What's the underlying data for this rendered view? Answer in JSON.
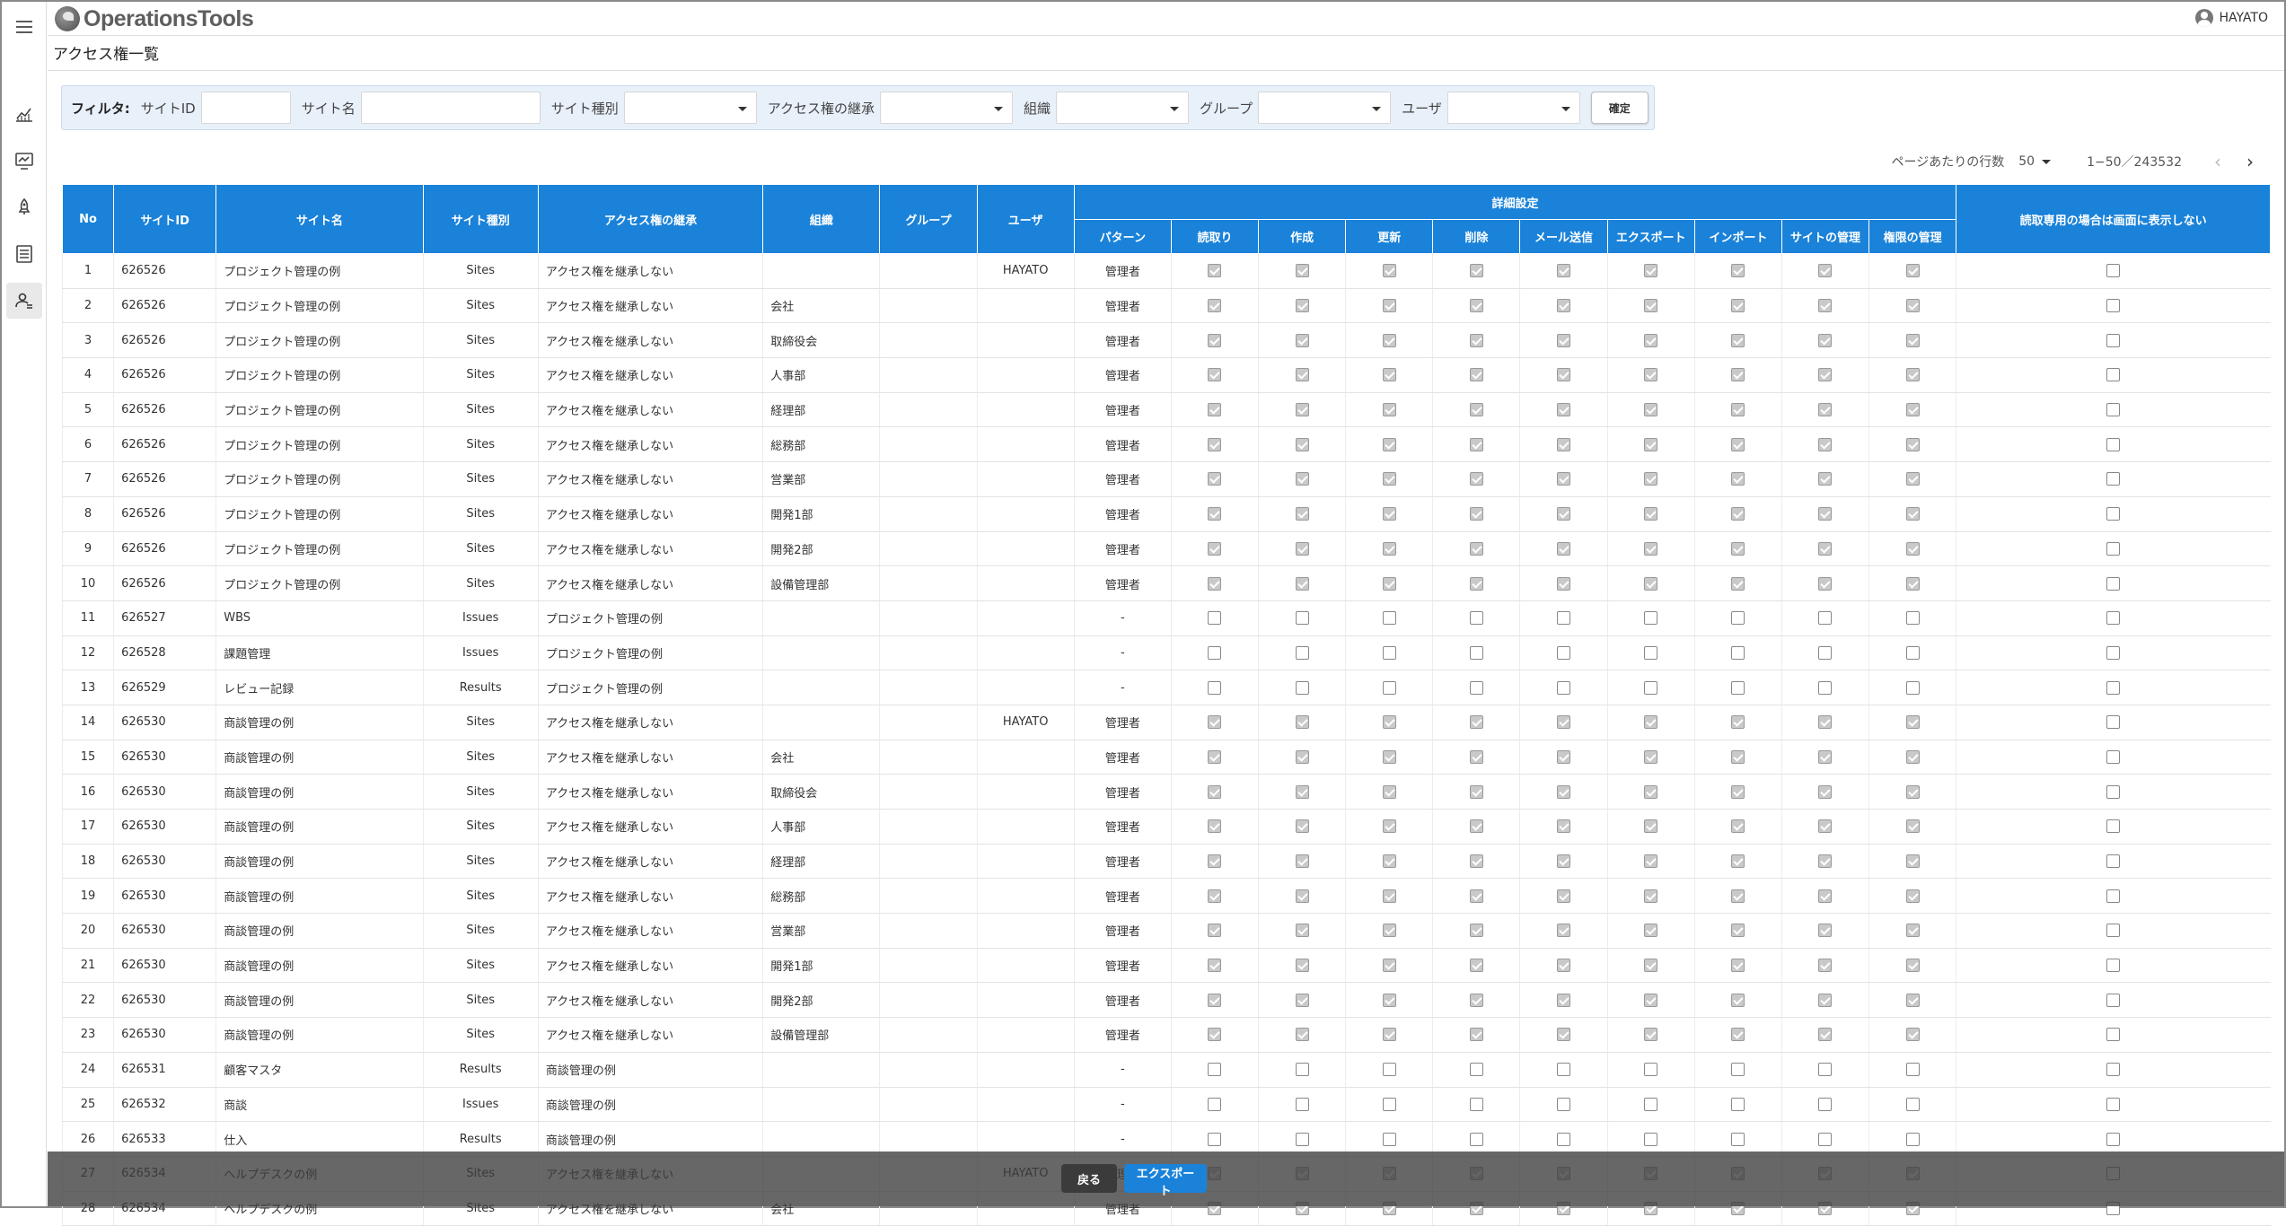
{
  "app": {
    "name": "OperationsTools",
    "user": "HAYATO"
  },
  "page": {
    "title": "アクセス権一覧"
  },
  "sidebar": {
    "items": [
      "chart-line-icon",
      "monitor-chart-icon",
      "rocket-icon",
      "list-document-icon",
      "user-settings-icon"
    ]
  },
  "filter": {
    "label": "フィルタ:",
    "site_id": "サイトID",
    "site_name": "サイト名",
    "site_type": "サイト種別",
    "inherit": "アクセス権の継承",
    "org": "組織",
    "group": "グループ",
    "user": "ユーザ",
    "confirm": "確定"
  },
  "pager": {
    "rows_label": "ページあたりの行数",
    "rows_value": "50",
    "range": "1−50／243532"
  },
  "table": {
    "headers": {
      "no": "No",
      "site_id": "サイトID",
      "site_name": "サイト名",
      "site_type": "サイト種別",
      "inherit": "アクセス権の継承",
      "org": "組織",
      "group": "グループ",
      "user": "ユーザ",
      "detail": "詳細設定",
      "pattern": "パターン",
      "read": "読取り",
      "create": "作成",
      "update": "更新",
      "delete": "削除",
      "mail": "メール送信",
      "export": "エクスポート",
      "import": "インポート",
      "site_manage": "サイトの管理",
      "perm_manage": "権限の管理",
      "readonly_hide": "読取専用の場合は画面に表示しない"
    },
    "rows": [
      {
        "no": "1",
        "site_id": "626526",
        "site_name": "プロジェクト管理の例",
        "site_type": "Sites",
        "inherit": "アクセス権を継承しない",
        "org": "",
        "group": "",
        "user": "HAYATO",
        "pattern": "管理者",
        "checked": true
      },
      {
        "no": "2",
        "site_id": "626526",
        "site_name": "プロジェクト管理の例",
        "site_type": "Sites",
        "inherit": "アクセス権を継承しない",
        "org": "会社",
        "group": "",
        "user": "",
        "pattern": "管理者",
        "checked": true
      },
      {
        "no": "3",
        "site_id": "626526",
        "site_name": "プロジェクト管理の例",
        "site_type": "Sites",
        "inherit": "アクセス権を継承しない",
        "org": "取締役会",
        "group": "",
        "user": "",
        "pattern": "管理者",
        "checked": true
      },
      {
        "no": "4",
        "site_id": "626526",
        "site_name": "プロジェクト管理の例",
        "site_type": "Sites",
        "inherit": "アクセス権を継承しない",
        "org": "人事部",
        "group": "",
        "user": "",
        "pattern": "管理者",
        "checked": true
      },
      {
        "no": "5",
        "site_id": "626526",
        "site_name": "プロジェクト管理の例",
        "site_type": "Sites",
        "inherit": "アクセス権を継承しない",
        "org": "経理部",
        "group": "",
        "user": "",
        "pattern": "管理者",
        "checked": true
      },
      {
        "no": "6",
        "site_id": "626526",
        "site_name": "プロジェクト管理の例",
        "site_type": "Sites",
        "inherit": "アクセス権を継承しない",
        "org": "総務部",
        "group": "",
        "user": "",
        "pattern": "管理者",
        "checked": true
      },
      {
        "no": "7",
        "site_id": "626526",
        "site_name": "プロジェクト管理の例",
        "site_type": "Sites",
        "inherit": "アクセス権を継承しない",
        "org": "営業部",
        "group": "",
        "user": "",
        "pattern": "管理者",
        "checked": true
      },
      {
        "no": "8",
        "site_id": "626526",
        "site_name": "プロジェクト管理の例",
        "site_type": "Sites",
        "inherit": "アクセス権を継承しない",
        "org": "開発1部",
        "group": "",
        "user": "",
        "pattern": "管理者",
        "checked": true
      },
      {
        "no": "9",
        "site_id": "626526",
        "site_name": "プロジェクト管理の例",
        "site_type": "Sites",
        "inherit": "アクセス権を継承しない",
        "org": "開発2部",
        "group": "",
        "user": "",
        "pattern": "管理者",
        "checked": true
      },
      {
        "no": "10",
        "site_id": "626526",
        "site_name": "プロジェクト管理の例",
        "site_type": "Sites",
        "inherit": "アクセス権を継承しない",
        "org": "設備管理部",
        "group": "",
        "user": "",
        "pattern": "管理者",
        "checked": true
      },
      {
        "no": "11",
        "site_id": "626527",
        "site_name": "WBS",
        "site_type": "Issues",
        "inherit": "プロジェクト管理の例",
        "org": "",
        "group": "",
        "user": "",
        "pattern": "-",
        "checked": false
      },
      {
        "no": "12",
        "site_id": "626528",
        "site_name": "課題管理",
        "site_type": "Issues",
        "inherit": "プロジェクト管理の例",
        "org": "",
        "group": "",
        "user": "",
        "pattern": "-",
        "checked": false
      },
      {
        "no": "13",
        "site_id": "626529",
        "site_name": "レビュー記録",
        "site_type": "Results",
        "inherit": "プロジェクト管理の例",
        "org": "",
        "group": "",
        "user": "",
        "pattern": "-",
        "checked": false
      },
      {
        "no": "14",
        "site_id": "626530",
        "site_name": "商談管理の例",
        "site_type": "Sites",
        "inherit": "アクセス権を継承しない",
        "org": "",
        "group": "",
        "user": "HAYATO",
        "pattern": "管理者",
        "checked": true
      },
      {
        "no": "15",
        "site_id": "626530",
        "site_name": "商談管理の例",
        "site_type": "Sites",
        "inherit": "アクセス権を継承しない",
        "org": "会社",
        "group": "",
        "user": "",
        "pattern": "管理者",
        "checked": true
      },
      {
        "no": "16",
        "site_id": "626530",
        "site_name": "商談管理の例",
        "site_type": "Sites",
        "inherit": "アクセス権を継承しない",
        "org": "取締役会",
        "group": "",
        "user": "",
        "pattern": "管理者",
        "checked": true
      },
      {
        "no": "17",
        "site_id": "626530",
        "site_name": "商談管理の例",
        "site_type": "Sites",
        "inherit": "アクセス権を継承しない",
        "org": "人事部",
        "group": "",
        "user": "",
        "pattern": "管理者",
        "checked": true
      },
      {
        "no": "18",
        "site_id": "626530",
        "site_name": "商談管理の例",
        "site_type": "Sites",
        "inherit": "アクセス権を継承しない",
        "org": "経理部",
        "group": "",
        "user": "",
        "pattern": "管理者",
        "checked": true
      },
      {
        "no": "19",
        "site_id": "626530",
        "site_name": "商談管理の例",
        "site_type": "Sites",
        "inherit": "アクセス権を継承しない",
        "org": "総務部",
        "group": "",
        "user": "",
        "pattern": "管理者",
        "checked": true
      },
      {
        "no": "20",
        "site_id": "626530",
        "site_name": "商談管理の例",
        "site_type": "Sites",
        "inherit": "アクセス権を継承しない",
        "org": "営業部",
        "group": "",
        "user": "",
        "pattern": "管理者",
        "checked": true
      },
      {
        "no": "21",
        "site_id": "626530",
        "site_name": "商談管理の例",
        "site_type": "Sites",
        "inherit": "アクセス権を継承しない",
        "org": "開発1部",
        "group": "",
        "user": "",
        "pattern": "管理者",
        "checked": true
      },
      {
        "no": "22",
        "site_id": "626530",
        "site_name": "商談管理の例",
        "site_type": "Sites",
        "inherit": "アクセス権を継承しない",
        "org": "開発2部",
        "group": "",
        "user": "",
        "pattern": "管理者",
        "checked": true
      },
      {
        "no": "23",
        "site_id": "626530",
        "site_name": "商談管理の例",
        "site_type": "Sites",
        "inherit": "アクセス権を継承しない",
        "org": "設備管理部",
        "group": "",
        "user": "",
        "pattern": "管理者",
        "checked": true
      },
      {
        "no": "24",
        "site_id": "626531",
        "site_name": "顧客マスタ",
        "site_type": "Results",
        "inherit": "商談管理の例",
        "org": "",
        "group": "",
        "user": "",
        "pattern": "-",
        "checked": false
      },
      {
        "no": "25",
        "site_id": "626532",
        "site_name": "商談",
        "site_type": "Issues",
        "inherit": "商談管理の例",
        "org": "",
        "group": "",
        "user": "",
        "pattern": "-",
        "checked": false
      },
      {
        "no": "26",
        "site_id": "626533",
        "site_name": "仕入",
        "site_type": "Results",
        "inherit": "商談管理の例",
        "org": "",
        "group": "",
        "user": "",
        "pattern": "-",
        "checked": false
      },
      {
        "no": "27",
        "site_id": "626534",
        "site_name": "ヘルプデスクの例",
        "site_type": "Sites",
        "inherit": "アクセス権を継承しない",
        "org": "",
        "group": "",
        "user": "HAYATO",
        "pattern": "管理者",
        "checked": true
      },
      {
        "no": "28",
        "site_id": "626534",
        "site_name": "ヘルプデスクの例",
        "site_type": "Sites",
        "inherit": "アクセス権を継承しない",
        "org": "会社",
        "group": "",
        "user": "",
        "pattern": "管理者",
        "checked": true
      }
    ]
  },
  "footer": {
    "back": "戻る",
    "export": "エクスポート"
  }
}
